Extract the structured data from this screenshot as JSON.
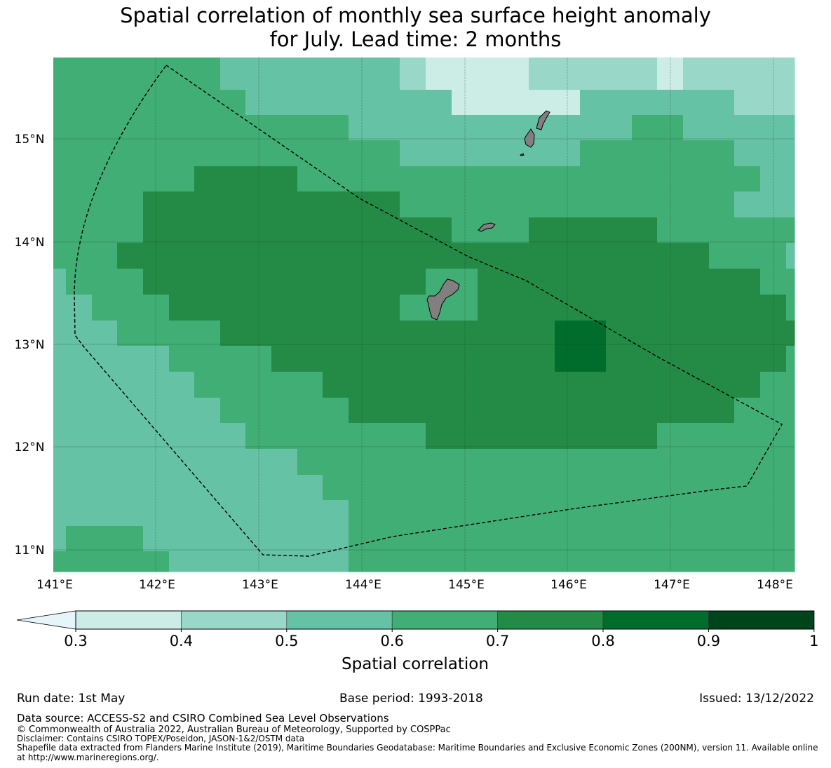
{
  "title": {
    "line1": "Spatial correlation of monthly sea surface height anomaly",
    "line2": "for July. Lead time: 2 months"
  },
  "map": {
    "lat_labels": [
      "15°N",
      "14°N",
      "13°N",
      "12°N",
      "11°N"
    ],
    "lon_labels": [
      "141°E",
      "142°E",
      "143°E",
      "144°E",
      "145°E",
      "146°E",
      "147°E",
      "148°E"
    ],
    "land_color": "#808080"
  },
  "colorbar": {
    "label": "Spatial correlation",
    "tick_labels": [
      "0.3",
      "0.4",
      "0.5",
      "0.6",
      "0.7",
      "0.8",
      "0.9",
      "1"
    ],
    "below_color": "#e5f5f9",
    "colors": [
      "#ccece6",
      "#99d8c9",
      "#66c2a4",
      "#41ae76",
      "#238b45",
      "#006d2c",
      "#00441b"
    ]
  },
  "chart_data": {
    "type": "heatmap",
    "title": "Spatial correlation of monthly sea surface height anomaly for July. Lead time: 2 months",
    "lon_range": [
      141,
      148.2
    ],
    "lat_range": [
      10.8,
      15.8
    ],
    "color_levels": [
      0.3,
      0.4,
      0.5,
      0.6,
      0.7,
      0.8,
      0.9,
      1.0
    ],
    "colorbar_label": "Spatial correlation"
  },
  "footer": {
    "run_date": "Run date: 1st May",
    "base_period": "Base period: 1993-2018",
    "issued": "Issued: 13/12/2022",
    "data_source": "Data source: ACCESS-S2 and CSIRO Combined Sea Level Observations",
    "copyright": "© Commonwealth of Australia 2022, Australian Bureau of Meteorology, Supported by COSPPac",
    "disclaimer": "Disclaimer: Contains CSIRO TOPEX/Poseidon, JASON-1&2/OSTM data",
    "shapefile1": "Shapefile data extracted from Flanders Marine Institute (2019), Maritime Boundaries Geodatabase: Maritime Boundaries and Exclusive Economic Zones (200NM), version 11. Available online",
    "shapefile2": "at http://www.marineregions.org/."
  }
}
